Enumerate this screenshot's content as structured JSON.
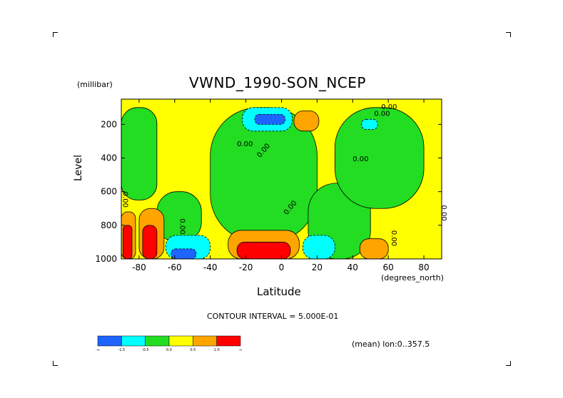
{
  "chart_data": {
    "type": "heatmap",
    "title": "VWND_1990-SON_NCEP",
    "xlabel": "Latitude",
    "ylabel": "Level",
    "x_units": "(degrees_north)",
    "y_units": "(millibar)",
    "xlim": [
      -90,
      90
    ],
    "ylim": [
      1000,
      50
    ],
    "y_inverted": true,
    "x_ticks": [
      "-80",
      "-60",
      "-40",
      "-20",
      "0",
      "20",
      "40",
      "60",
      "80"
    ],
    "x_tick_values": [
      -80,
      -60,
      -40,
      -20,
      0,
      20,
      40,
      60,
      80
    ],
    "y_ticks": [
      "200",
      "400",
      "600",
      "800",
      "1000"
    ],
    "y_tick_values": [
      200,
      400,
      600,
      800,
      1000
    ],
    "contour_interval_text": "CONTOUR INTERVAL = 5.000E-01",
    "subset_text": "(mean) lon:0..357.5",
    "contour_labels": [
      "0.00",
      "0.00",
      "0.00",
      "0.00",
      "0.00",
      "0.00",
      "0.00",
      "0.00",
      "0.00",
      "0.00"
    ],
    "colorbar": {
      "colors": [
        "#1e64ff",
        "#00ffff",
        "#22dd22",
        "#ffff00",
        "#ffa500",
        "#ff0000"
      ],
      "labels": [
        "-∞",
        "-1.5",
        "-0.5",
        "0.0",
        "0.5",
        "1.0",
        "∞"
      ]
    },
    "regions": [
      {
        "value_band": "0.0 to 0.5",
        "lat": [
          -90,
          90
        ],
        "lev": [
          50,
          1000
        ],
        "note": "background"
      },
      {
        "value_band": "-0.5 to 0.0",
        "lat": [
          -90,
          -70
        ],
        "lev": [
          100,
          650
        ]
      },
      {
        "value_band": "-0.5 to 0.0",
        "lat": [
          -70,
          -45
        ],
        "lev": [
          600,
          900
        ]
      },
      {
        "value_band": "-0.5 to 0.0",
        "lat": [
          -40,
          20
        ],
        "lev": [
          100,
          900
        ]
      },
      {
        "value_band": "-0.5 to 0.0",
        "lat": [
          15,
          50
        ],
        "lev": [
          550,
          1000
        ]
      },
      {
        "value_band": "-0.5 to 0.0",
        "lat": [
          30,
          80
        ],
        "lev": [
          100,
          700
        ]
      },
      {
        "value_band": "-1.5 to -0.5",
        "lat": [
          -22,
          6
        ],
        "lev": [
          100,
          240
        ]
      },
      {
        "value_band": "-∞ to -1.5",
        "lat": [
          -15,
          2
        ],
        "lev": [
          140,
          200
        ]
      },
      {
        "value_band": "-1.5 to -0.5",
        "lat": [
          -65,
          -40
        ],
        "lev": [
          860,
          1000
        ]
      },
      {
        "value_band": "-∞ to -1.5",
        "lat": [
          -62,
          -48
        ],
        "lev": [
          940,
          1000
        ]
      },
      {
        "value_band": "-1.5 to -0.5",
        "lat": [
          12,
          30
        ],
        "lev": [
          860,
          1000
        ]
      },
      {
        "value_band": "-1.5 to -0.5",
        "lat": [
          45,
          54
        ],
        "lev": [
          170,
          230
        ]
      },
      {
        "value_band": "0.5 to 1.0",
        "lat": [
          7,
          21
        ],
        "lev": [
          120,
          240
        ]
      },
      {
        "value_band": "0.5 to 1.0",
        "lat": [
          -30,
          10
        ],
        "lev": [
          830,
          1000
        ]
      },
      {
        "value_band": "1.0 to ∞",
        "lat": [
          -25,
          5
        ],
        "lev": [
          900,
          1000
        ]
      },
      {
        "value_band": "0.5 to 1.0",
        "lat": [
          44,
          60
        ],
        "lev": [
          880,
          1000
        ]
      },
      {
        "value_band": "0.5 to 1.0",
        "lat": [
          -90,
          -82
        ],
        "lev": [
          720,
          1000
        ]
      },
      {
        "value_band": "1.0 to ∞",
        "lat": [
          -89,
          -84
        ],
        "lev": [
          800,
          1000
        ]
      },
      {
        "value_band": "0.5 to 1.0",
        "lat": [
          -80,
          -66
        ],
        "lev": [
          700,
          1000
        ]
      },
      {
        "value_band": "1.0 to ∞",
        "lat": [
          -78,
          -70
        ],
        "lev": [
          800,
          1000
        ]
      }
    ]
  }
}
